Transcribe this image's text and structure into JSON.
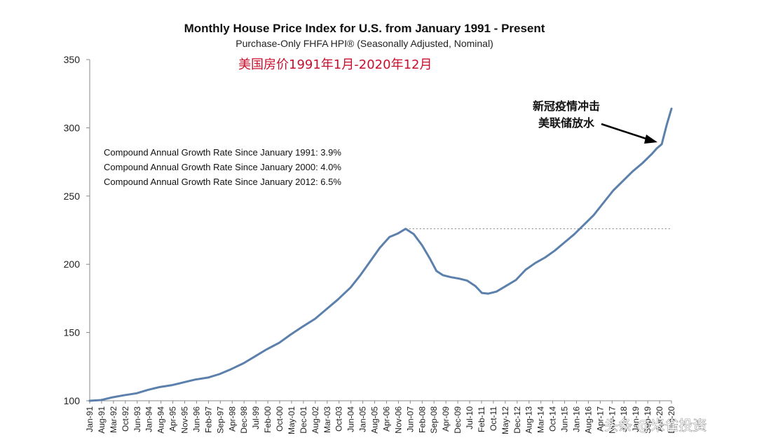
{
  "chart_data": {
    "type": "line",
    "title": "Monthly House Price Index for U.S. from January 1991 - Present",
    "subtitle": "Purchase-Only FHFA HPI® (Seasonally Adjusted, Nominal)",
    "overlay_title": "美国房价1991年1月-2020年12月",
    "ylim": [
      100,
      350
    ],
    "yticks": [
      100,
      150,
      200,
      250,
      300,
      350
    ],
    "x_range": [
      "1991-01",
      "2020-12"
    ],
    "x_tick_labels": [
      "Jan-91",
      "Aug-91",
      "Mar-92",
      "Oct-92",
      "Jun-93",
      "Jan-94",
      "Aug-94",
      "Apr-95",
      "Nov-95",
      "Jun-96",
      "Feb-97",
      "Sep-97",
      "Apr-98",
      "Dec-98",
      "Jul-99",
      "Feb-00",
      "Oct-00",
      "May-01",
      "Dec-01",
      "Aug-02",
      "Mar-03",
      "Oct-03",
      "Jun-04",
      "Jan-05",
      "Aug-05",
      "Apr-06",
      "Nov-06",
      "Jun-07",
      "Feb-08",
      "Sep-08",
      "Apr-09",
      "Dec-09",
      "Jul-10",
      "Feb-11",
      "Oct-11",
      "May-12",
      "Dec-12",
      "Aug-13",
      "Mar-14",
      "Oct-14",
      "Jun-15",
      "Jan-16",
      "Aug-16",
      "Apr-17",
      "Nov-17",
      "Jun-18",
      "Jan-19",
      "Sep-19",
      "Apr-20",
      "Dec-20"
    ],
    "series": [
      {
        "color": "#5b80ab",
        "points": [
          [
            "1991-01",
            100.0
          ],
          [
            "1991-08",
            100.5
          ],
          [
            "1992-03",
            102.5
          ],
          [
            "1992-10",
            104.0
          ],
          [
            "1993-06",
            105.5
          ],
          [
            "1994-01",
            108.0
          ],
          [
            "1994-08",
            110.0
          ],
          [
            "1995-04",
            111.5
          ],
          [
            "1995-11",
            113.5
          ],
          [
            "1996-06",
            115.5
          ],
          [
            "1997-02",
            117.0
          ],
          [
            "1997-09",
            119.5
          ],
          [
            "1998-04",
            123.0
          ],
          [
            "1998-12",
            127.5
          ],
          [
            "1999-07",
            132.5
          ],
          [
            "2000-02",
            137.5
          ],
          [
            "2000-10",
            142.5
          ],
          [
            "2001-05",
            148.5
          ],
          [
            "2001-12",
            154.0
          ],
          [
            "2002-08",
            160.0
          ],
          [
            "2003-03",
            167.0
          ],
          [
            "2003-10",
            174.0
          ],
          [
            "2004-06",
            183.0
          ],
          [
            "2004-12",
            192.0
          ],
          [
            "2005-06",
            202.0
          ],
          [
            "2005-12",
            212.0
          ],
          [
            "2006-06",
            220.0
          ],
          [
            "2006-11",
            222.5
          ],
          [
            "2007-04",
            226.0
          ],
          [
            "2007-09",
            222.0
          ],
          [
            "2008-02",
            214.0
          ],
          [
            "2008-07",
            204.0
          ],
          [
            "2008-11",
            195.0
          ],
          [
            "2009-03",
            192.0
          ],
          [
            "2009-08",
            190.5
          ],
          [
            "2010-01",
            189.5
          ],
          [
            "2010-06",
            188.0
          ],
          [
            "2010-11",
            184.0
          ],
          [
            "2011-03",
            179.0
          ],
          [
            "2011-07",
            178.5
          ],
          [
            "2011-12",
            180.0
          ],
          [
            "2012-05",
            183.5
          ],
          [
            "2012-12",
            188.5
          ],
          [
            "2013-06",
            196.0
          ],
          [
            "2013-12",
            201.0
          ],
          [
            "2014-06",
            205.0
          ],
          [
            "2014-12",
            210.0
          ],
          [
            "2015-06",
            216.0
          ],
          [
            "2015-12",
            222.0
          ],
          [
            "2016-06",
            229.0
          ],
          [
            "2016-12",
            236.0
          ],
          [
            "2017-06",
            245.0
          ],
          [
            "2017-12",
            254.0
          ],
          [
            "2018-06",
            261.0
          ],
          [
            "2018-12",
            268.0
          ],
          [
            "2019-06",
            274.0
          ],
          [
            "2019-12",
            281.0
          ],
          [
            "2020-03",
            285.0
          ],
          [
            "2020-06",
            288.0
          ],
          [
            "2020-09",
            302.0
          ],
          [
            "2020-12",
            314.0
          ]
        ]
      }
    ],
    "reference_line": {
      "y": 226,
      "from": "2007-04",
      "to": "2020-12",
      "style": "dotted"
    },
    "cagr_lines": [
      "Compound Annual Growth Rate Since January 1991:  3.9%",
      "Compound Annual Growth Rate Since January 2000:  4.0%",
      "Compound Annual Growth Rate Since January 2012:  6.5%"
    ],
    "annotation": {
      "line1": "新冠疫情冲击",
      "line2": "美联储放水",
      "points_to": "2020-06"
    },
    "watermark": "头条 @米雀投资",
    "grid": false
  }
}
